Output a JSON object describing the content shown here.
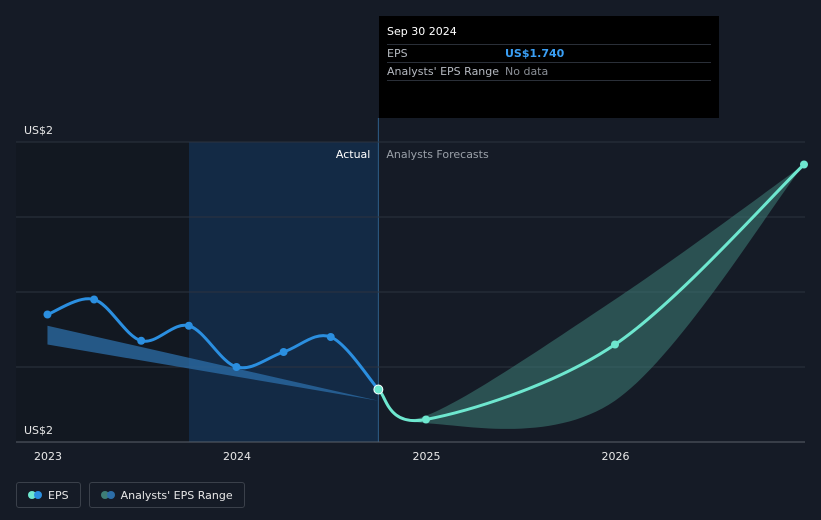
{
  "tooltip": {
    "date": "Sep 30 2024",
    "eps_label": "EPS",
    "eps_value": "US$1.740",
    "range_label": "Analysts' EPS Range",
    "range_value": "No data"
  },
  "sections": {
    "actual": "Actual",
    "forecast": "Analysts Forecasts"
  },
  "legend": {
    "eps": "EPS",
    "range": "Analysts' EPS Range"
  },
  "colors": {
    "actual_line": "#2b8fe0",
    "forecast_line": "#6ee7cf",
    "range_fill": "#3e7d76",
    "past_range": "#2c6ea8",
    "highlight": "#132a45"
  },
  "chart_data": {
    "type": "line",
    "y_tick_labels": [
      "US$2",
      "US$2"
    ],
    "x_tick_labels": [
      "2023",
      "2024",
      "2025",
      "2026"
    ],
    "ylim": [
      1.6,
      2.4
    ],
    "grid": true,
    "series": [
      {
        "name": "EPS",
        "kind": "actual",
        "x": [
          "2022-12-31",
          "2023-03-31",
          "2023-06-30",
          "2023-09-30",
          "2023-12-31",
          "2024-03-31",
          "2024-06-30",
          "2024-09-30"
        ],
        "y": [
          1.94,
          1.98,
          1.87,
          1.91,
          1.8,
          1.84,
          1.88,
          1.74
        ]
      },
      {
        "name": "EPS",
        "kind": "forecast",
        "x": [
          "2024-09-30",
          "2024-12-31",
          "2025-12-31",
          "2026-12-31"
        ],
        "y": [
          1.74,
          1.66,
          1.86,
          2.34
        ]
      }
    ],
    "range": {
      "name": "Analysts' EPS Range",
      "x": [
        "2024-09-30",
        "2024-12-31",
        "2025-12-31",
        "2026-12-31"
      ],
      "low": [
        1.74,
        1.65,
        1.71,
        2.34
      ],
      "high": [
        1.74,
        1.67,
        1.98,
        2.34
      ]
    },
    "past_estimate": {
      "x": [
        "2022-12-31",
        "2024-09-30"
      ],
      "low": [
        1.86,
        1.71
      ],
      "high": [
        1.91,
        1.71
      ]
    }
  }
}
